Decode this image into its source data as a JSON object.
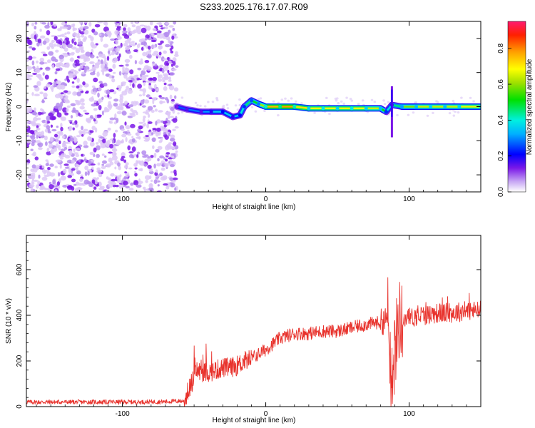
{
  "title": "S233.2025.176.17.07.R09",
  "colors": {
    "snr_line": "#e8322c",
    "noise_purple": "#7a18e8",
    "frame": "#000000"
  },
  "chart_data": [
    {
      "type": "heatmap",
      "title": "S233.2025.176.17.07.R09",
      "xlabel": "Height of straight line (km)",
      "ylabel": "Frequency (Hz)",
      "xlim": [
        -167,
        150
      ],
      "ylim": [
        -25,
        25
      ],
      "xticks": [
        -100,
        0,
        100
      ],
      "yticks": [
        -20,
        -10,
        0,
        10,
        20
      ],
      "colorbar": {
        "label": "Normalized spectral amplitude",
        "range": [
          0,
          0.95
        ],
        "ticks": [
          "0.0",
          "0.2",
          "0.4",
          "0.6",
          "0.8"
        ],
        "colormap": "rainbow"
      },
      "noise_region_x": [
        -167,
        -62
      ],
      "trace": [
        {
          "x": -62,
          "y": 0.0,
          "amp": 0.25
        },
        {
          "x": -55,
          "y": -0.8,
          "amp": 0.3
        },
        {
          "x": -45,
          "y": -1.5,
          "amp": 0.3
        },
        {
          "x": -38,
          "y": -1.5,
          "amp": 0.35
        },
        {
          "x": -30,
          "y": -1.5,
          "amp": 0.4
        },
        {
          "x": -23,
          "y": -3.0,
          "amp": 0.35
        },
        {
          "x": -18,
          "y": -2.5,
          "amp": 0.4
        },
        {
          "x": -15,
          "y": 0.0,
          "amp": 0.45
        },
        {
          "x": -10,
          "y": 1.8,
          "amp": 0.5
        },
        {
          "x": -5,
          "y": 0.8,
          "amp": 0.55
        },
        {
          "x": 0,
          "y": 0.0,
          "amp": 0.75
        },
        {
          "x": 10,
          "y": 0.0,
          "amp": 0.85
        },
        {
          "x": 20,
          "y": 0.0,
          "amp": 0.8
        },
        {
          "x": 30,
          "y": -0.5,
          "amp": 0.7
        },
        {
          "x": 40,
          "y": -0.5,
          "amp": 0.75
        },
        {
          "x": 50,
          "y": -0.5,
          "amp": 0.7
        },
        {
          "x": 60,
          "y": -0.5,
          "amp": 0.75
        },
        {
          "x": 70,
          "y": -0.5,
          "amp": 0.7
        },
        {
          "x": 80,
          "y": -0.5,
          "amp": 0.65
        },
        {
          "x": 84,
          "y": -1.5,
          "amp": 0.45
        },
        {
          "x": 88,
          "y": 0.5,
          "amp": 0.35
        },
        {
          "x": 95,
          "y": 0.0,
          "amp": 0.6
        },
        {
          "x": 105,
          "y": 0.0,
          "amp": 0.65
        },
        {
          "x": 115,
          "y": 0.0,
          "amp": 0.7
        },
        {
          "x": 125,
          "y": 0.0,
          "amp": 0.65
        },
        {
          "x": 135,
          "y": 0.0,
          "amp": 0.7
        },
        {
          "x": 150,
          "y": 0.0,
          "amp": 0.7
        }
      ]
    },
    {
      "type": "line",
      "xlabel": "Height of straight line (km)",
      "ylabel": "SNR (10 * v/v)",
      "xlim": [
        -167,
        150
      ],
      "ylim": [
        0,
        750
      ],
      "xticks": [
        -100,
        0,
        100
      ],
      "yticks": [
        0,
        200,
        400,
        600
      ],
      "series": [
        {
          "x": [
            -167,
            -150,
            -130,
            -110,
            -90,
            -70,
            -57,
            -52,
            -48,
            -45,
            -40,
            -35,
            -30,
            -25,
            -20,
            -15,
            -10,
            -5,
            0,
            10,
            20,
            30,
            40,
            50,
            60,
            70,
            80,
            85,
            88,
            90,
            93,
            96,
            100,
            110,
            120,
            130,
            140,
            150
          ],
          "values": [
            20,
            20,
            20,
            20,
            20,
            22,
            25,
            100,
            160,
            150,
            150,
            160,
            170,
            170,
            180,
            200,
            210,
            230,
            250,
            300,
            320,
            320,
            330,
            330,
            345,
            360,
            370,
            380,
            150,
            250,
            380,
            390,
            390,
            400,
            410,
            410,
            420,
            420
          ]
        }
      ]
    }
  ]
}
